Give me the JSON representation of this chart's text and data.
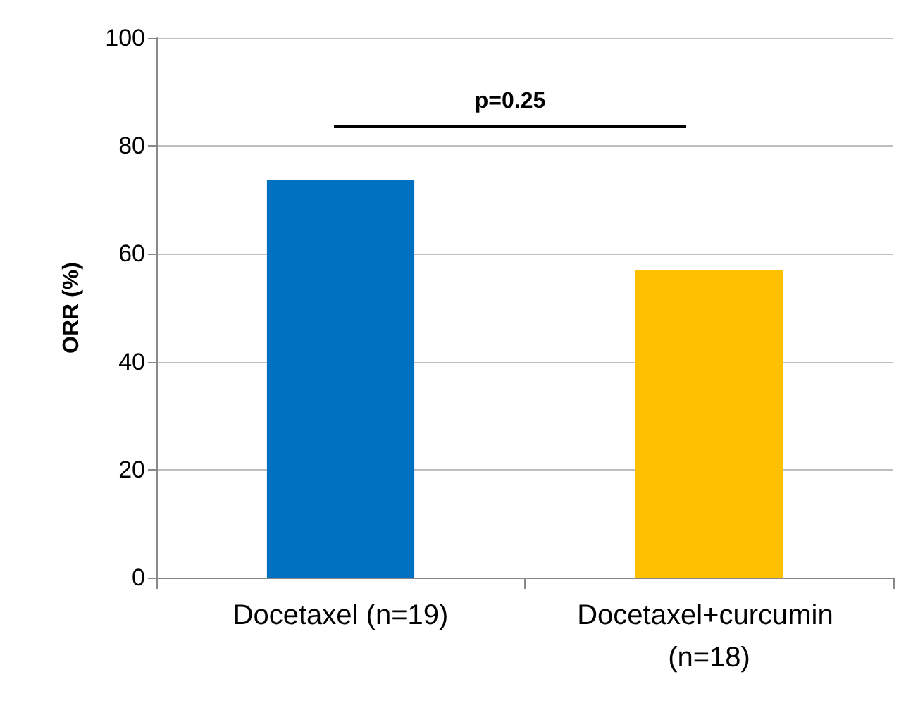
{
  "chart_data": {
    "type": "bar",
    "ylabel": "ORR (%)",
    "categories": [
      "Docetaxel (n=19)",
      "Docetaxel+curcumin (n=18)"
    ],
    "values": [
      73.7,
      57
    ],
    "colors": [
      "#0070c0",
      "#ffc000"
    ],
    "ylim": [
      0,
      100
    ],
    "yticks": [
      0,
      20,
      40,
      60,
      80,
      100
    ],
    "grid": "y",
    "annotations": [
      "p=0.25"
    ]
  }
}
